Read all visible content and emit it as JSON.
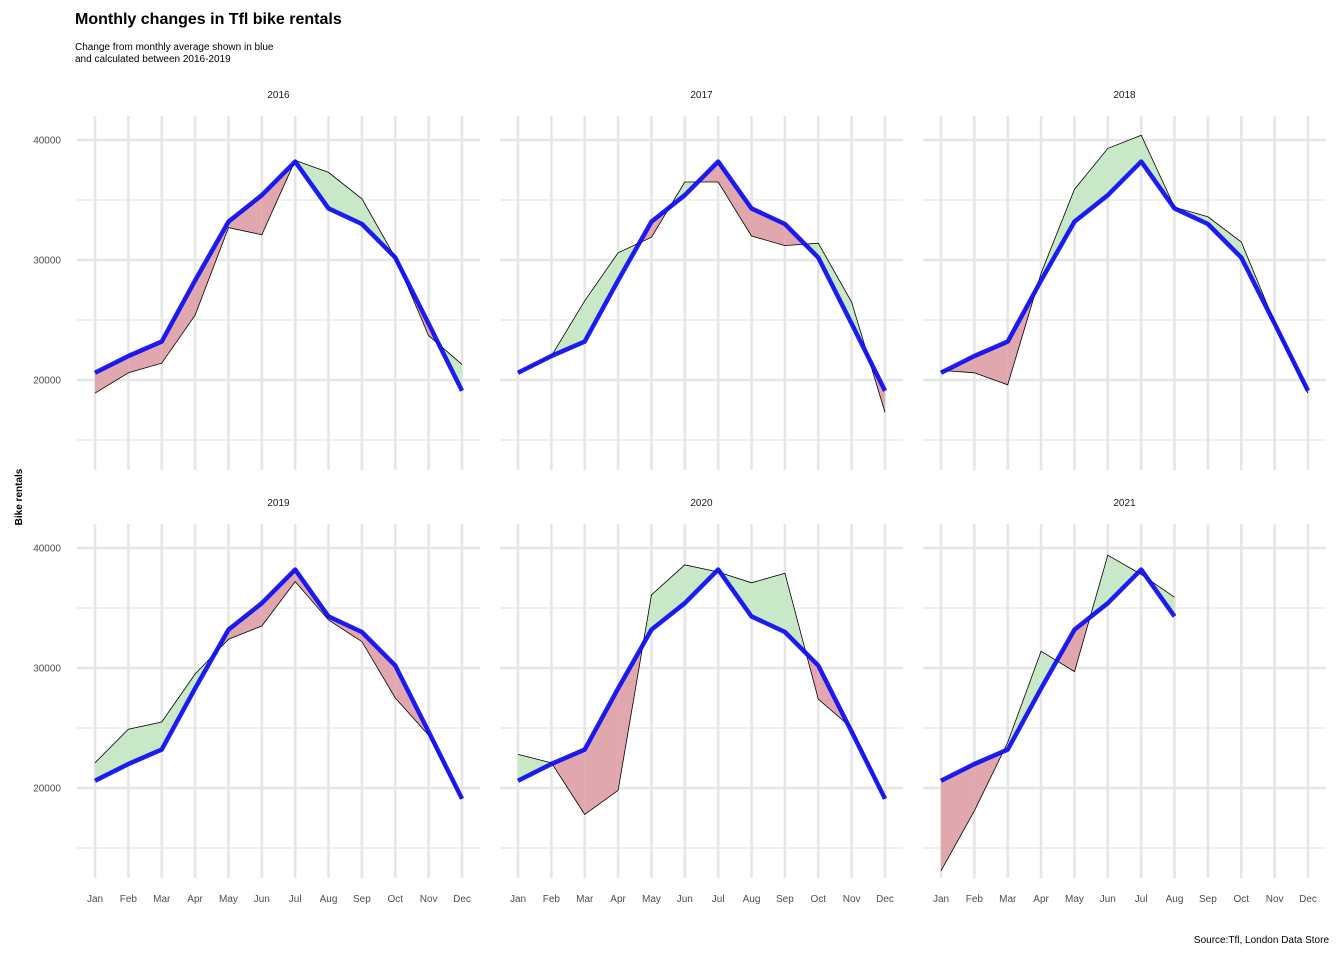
{
  "title": "Monthly changes in Tfl bike rentals",
  "subtitle": "Change from monthly average shown in blue\nand calculated between 2016-2019",
  "caption": "Source:Tfl, London Data Store",
  "colors": {
    "average_line": "#0a0af0",
    "above_fill": "#c8e8c8",
    "below_fill": "#e0a8ae",
    "actual_line": "#000000",
    "grid": "#e6e6e6"
  },
  "chart_data": {
    "type": "line",
    "ylabel": "Bike rentals",
    "xlabel": "",
    "months": [
      "Jan",
      "Feb",
      "Mar",
      "Apr",
      "May",
      "Jun",
      "Jul",
      "Aug",
      "Sep",
      "Oct",
      "Nov",
      "Dec"
    ],
    "y_ticks": [
      20000,
      30000,
      40000
    ],
    "ylim": [
      12500,
      42000
    ],
    "grid": true,
    "monthly_average": [
      20600,
      22000,
      23200,
      28300,
      33200,
      35400,
      38200,
      34300,
      33000,
      30200,
      24700,
      19100
    ],
    "panels": [
      {
        "year": "2016",
        "actual": [
          18900,
          20600,
          21400,
          25400,
          32700,
          32100,
          38300,
          37300,
          35100,
          30200,
          23700,
          21300
        ]
      },
      {
        "year": "2017",
        "actual": [
          20600,
          22000,
          26600,
          30600,
          31900,
          36500,
          36500,
          32000,
          31200,
          31400,
          26500,
          17300
        ]
      },
      {
        "year": "2018",
        "actual": [
          20800,
          20600,
          19600,
          28900,
          35900,
          39300,
          40400,
          34400,
          33600,
          31500,
          24800,
          18900
        ]
      },
      {
        "year": "2019",
        "actual": [
          22100,
          24900,
          25500,
          29500,
          32400,
          33500,
          37200,
          34000,
          32200,
          27500,
          24400,
          19100
        ]
      },
      {
        "year": "2020",
        "actual": [
          22800,
          22100,
          17800,
          19800,
          36100,
          38600,
          38000,
          37100,
          37900,
          27400,
          25000,
          19100
        ]
      },
      {
        "year": "2021",
        "actual": [
          13100,
          18100,
          23800,
          31400,
          29700,
          39400,
          37800,
          35900
        ]
      }
    ]
  }
}
